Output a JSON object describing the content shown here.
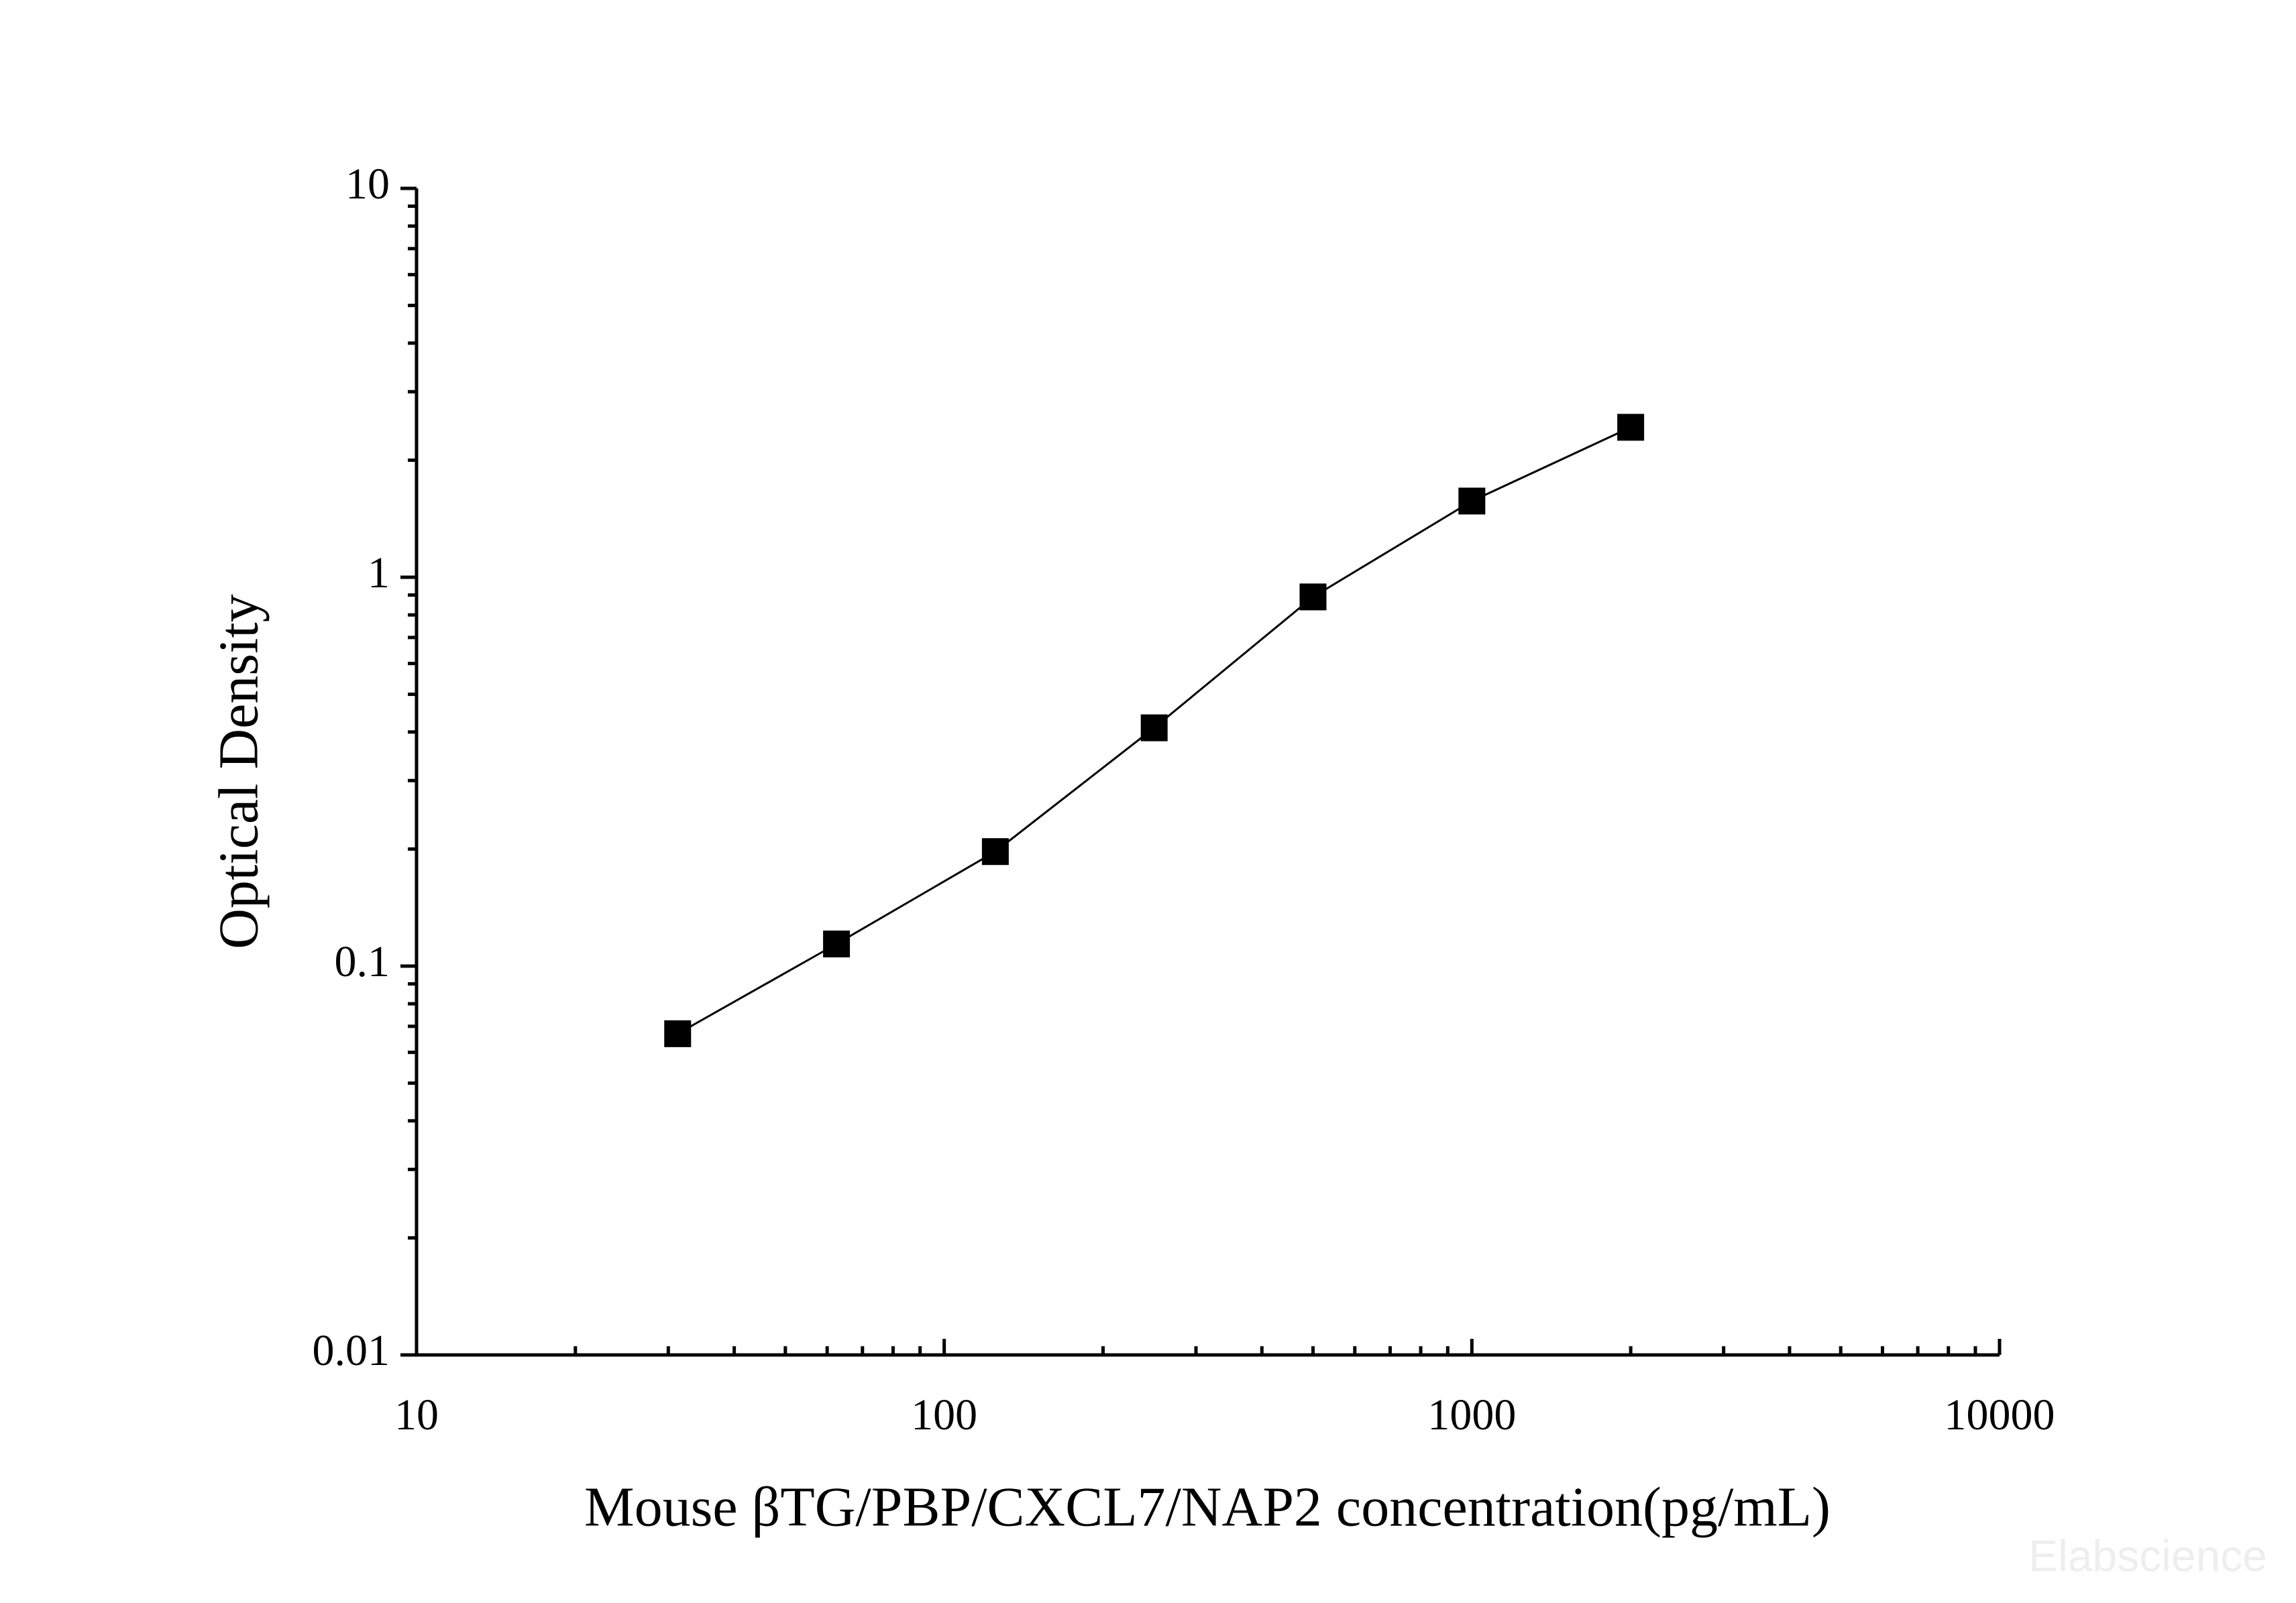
{
  "chart_data": {
    "type": "line",
    "x_label": "Mouse βTG/PBP/CXCL7/NAP2 concentration(pg/mL)",
    "y_label": "Optical Density",
    "watermark": "Elabscience",
    "x": [
      31.25,
      62.5,
      125,
      250,
      500,
      1000,
      2000
    ],
    "series": [
      {
        "color": "#000000",
        "values": [
          0.067,
          0.114,
          0.197,
          0.41,
          0.89,
          1.57,
          2.43
        ]
      }
    ],
    "x_log": true,
    "y_log": true,
    "xlim": [
      10,
      10000
    ],
    "xticks": [
      10,
      100,
      1000,
      10000
    ],
    "ylim": [
      0.01,
      10
    ],
    "yticks": [
      0.01,
      0.1,
      1,
      10
    ]
  }
}
